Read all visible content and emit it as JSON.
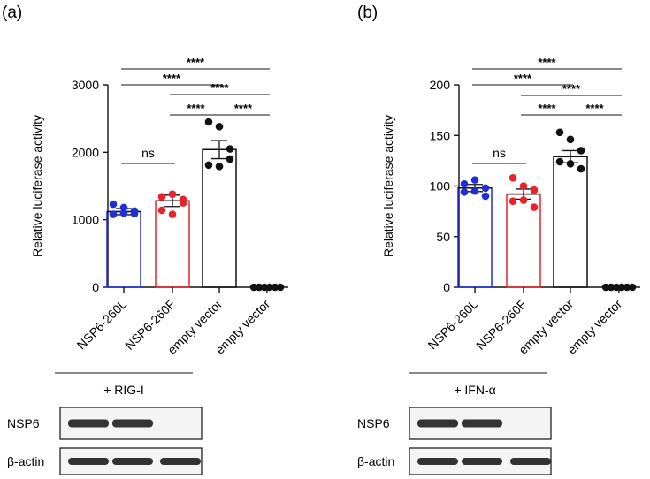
{
  "chart_data": [
    {
      "panel_label": "(a)",
      "type": "bar",
      "ylabel": "Relative luciferase activity",
      "ylim": [
        0,
        3000
      ],
      "yticks": [
        0,
        1000,
        2000,
        3000
      ],
      "categories": [
        "NSP6-260L",
        "NSP6-260F",
        "empty vector",
        "empty vector"
      ],
      "bar_colors": [
        "#1f2fd6",
        "#e8232a",
        "#111111",
        "#111111"
      ],
      "values": [
        1120,
        1280,
        2040,
        0
      ],
      "sem": [
        45,
        85,
        135,
        0
      ],
      "points": [
        [
          1230,
          1180,
          1090,
          1080,
          1100,
          1130
        ],
        [
          1340,
          1380,
          1250,
          1140,
          1080,
          1300
        ],
        [
          2450,
          2380,
          2050,
          1810,
          1790,
          1900
        ],
        [
          0,
          0,
          0,
          0,
          0,
          0
        ]
      ],
      "significance": [
        {
          "from": 0,
          "to": 1,
          "label": "ns"
        },
        {
          "from": 1,
          "to": 2,
          "label": "****"
        },
        {
          "from": 2,
          "to": 3,
          "label": "****"
        },
        {
          "from": 1,
          "to": 3,
          "label": "****"
        },
        {
          "from": 0,
          "to": 2,
          "label": "****"
        },
        {
          "from": 0,
          "to": 3,
          "label": "****"
        }
      ],
      "treatment_label": "+ RIG-I",
      "blot_rows": [
        {
          "label": "NSP6",
          "bands": [
            1,
            1,
            0
          ]
        },
        {
          "label": "β-actin",
          "bands": [
            1,
            1,
            1
          ]
        }
      ]
    },
    {
      "panel_label": "(b)",
      "type": "bar",
      "ylabel": "Relative luciferase activity",
      "ylim": [
        0,
        200
      ],
      "yticks": [
        0,
        50,
        100,
        150,
        200
      ],
      "categories": [
        "NSP6-260L",
        "NSP6-260F",
        "empty vector",
        "empty vector"
      ],
      "bar_colors": [
        "#1f2fd6",
        "#e8232a",
        "#111111",
        "#111111"
      ],
      "values": [
        98,
        92,
        129,
        0
      ],
      "sem": [
        3.5,
        5,
        6,
        0
      ],
      "points": [
        [
          102,
          106,
          98,
          94,
          95,
          90
        ],
        [
          108,
          100,
          96,
          85,
          86,
          79
        ],
        [
          153,
          146,
          135,
          124,
          122,
          117
        ],
        [
          0,
          0,
          0,
          0,
          0,
          0
        ]
      ],
      "significance": [
        {
          "from": 0,
          "to": 1,
          "label": "ns"
        },
        {
          "from": 1,
          "to": 2,
          "label": "****"
        },
        {
          "from": 2,
          "to": 3,
          "label": "****"
        },
        {
          "from": 1,
          "to": 3,
          "label": "****"
        },
        {
          "from": 0,
          "to": 2,
          "label": "****"
        },
        {
          "from": 0,
          "to": 3,
          "label": "****"
        }
      ],
      "treatment_label": "+ IFN-α",
      "blot_rows": [
        {
          "label": "NSP6",
          "bands": [
            1,
            1,
            0
          ]
        },
        {
          "label": "β-actin",
          "bands": [
            1,
            1,
            1
          ]
        }
      ]
    }
  ]
}
